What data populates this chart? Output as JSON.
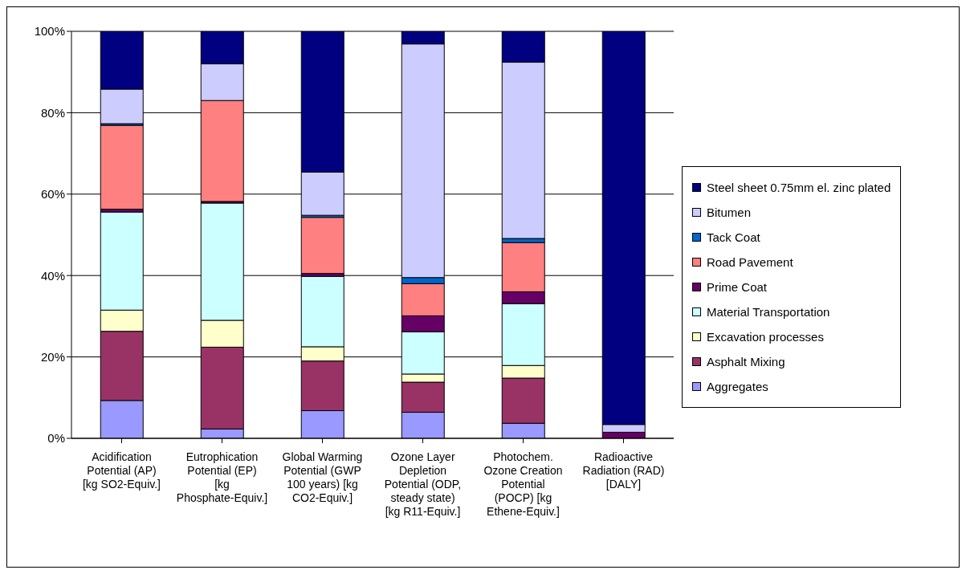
{
  "chart_data": {
    "type": "bar",
    "stacked": true,
    "categories": [
      "Acidification Potential (AP) [kg SO2-Equiv.]",
      "Eutrophication Potential (EP) [kg Phosphate-Equiv.]",
      "Global Warming Potential (GWP 100 years) [kg CO2-Equiv.]",
      "Ozone Layer Depletion Potential (ODP, steady state) [kg R11-Equiv.]",
      "Photochem. Ozone Creation Potential (POCP) [kg Ethene-Equiv.]",
      "Radioactive Radiation (RAD) [DALY]"
    ],
    "series": [
      {
        "name": "Aggregates",
        "color": "#9999ff",
        "values": [
          9.3,
          2.3,
          6.8,
          6.4,
          3.7,
          null
        ]
      },
      {
        "name": "Asphalt Mixing",
        "color": "#993366",
        "values": [
          17.0,
          20.1,
          12.2,
          7.4,
          11.1,
          null
        ]
      },
      {
        "name": "Excavation processes",
        "color": "#ffffcc",
        "values": [
          5.2,
          6.6,
          3.5,
          2.0,
          3.1,
          null
        ]
      },
      {
        "name": "Material Transportation",
        "color": "#ccffff",
        "values": [
          24.1,
          28.8,
          17.3,
          10.4,
          15.2,
          null
        ]
      },
      {
        "name": "Prime Coat",
        "color": "#660066",
        "values": [
          0.7,
          0.4,
          0.7,
          3.9,
          2.9,
          1.5
        ]
      },
      {
        "name": "Road Pavement",
        "color": "#ff8080",
        "values": [
          20.6,
          24.8,
          13.8,
          7.9,
          12.1,
          null
        ]
      },
      {
        "name": "Tack Coat",
        "color": "#0066cc",
        "values": [
          0.4,
          null,
          0.5,
          1.5,
          1.0,
          null
        ]
      },
      {
        "name": "Bitumen",
        "color": "#ccccff",
        "values": [
          8.5,
          9.0,
          10.6,
          57.4,
          43.3,
          1.9
        ]
      },
      {
        "name": "Steel sheet 0.75mm el. zinc plated",
        "color": "#000080",
        "values": [
          14.2,
          8.0,
          34.6,
          3.1,
          7.6,
          96.6
        ]
      }
    ],
    "ylim": [
      0,
      100
    ],
    "yticks": [
      {
        "value": 0,
        "label": "0%"
      },
      {
        "value": 20,
        "label": "20%"
      },
      {
        "value": 40,
        "label": "40%"
      },
      {
        "value": 60,
        "label": "60%"
      },
      {
        "value": 80,
        "label": "80%"
      },
      {
        "value": 100,
        "label": "100%"
      }
    ],
    "grid": "y",
    "legend": "right"
  }
}
